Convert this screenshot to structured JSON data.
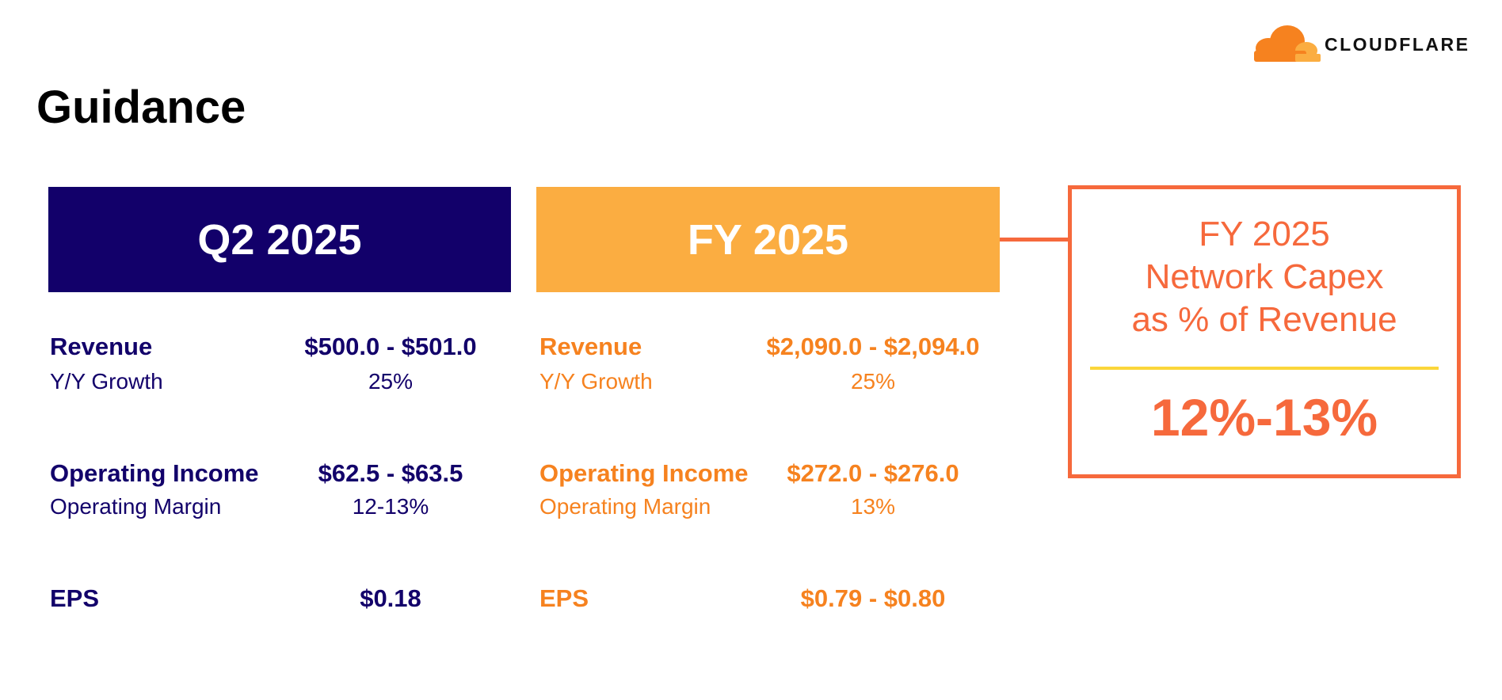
{
  "logo": {
    "text": "CLOUDFLARE"
  },
  "title": "Guidance",
  "q2": {
    "header": "Q2 2025",
    "revenue_label": "Revenue",
    "revenue_value": "$500.0 - $501.0",
    "growth_label": "Y/Y Growth",
    "growth_value": "25%",
    "opinc_label": "Operating Income",
    "opinc_value": "$62.5 - $63.5",
    "margin_label": "Operating Margin",
    "margin_value": "12-13%",
    "eps_label": "EPS",
    "eps_value": "$0.18"
  },
  "fy": {
    "header": "FY 2025",
    "revenue_label": "Revenue",
    "revenue_value": "$2,090.0 - $2,094.0",
    "growth_label": "Y/Y Growth",
    "growth_value": "25%",
    "opinc_label": "Operating Income",
    "opinc_value": "$272.0 - $276.0",
    "margin_label": "Operating Margin",
    "margin_value": "13%",
    "eps_label": "EPS",
    "eps_value": "$0.79 - $0.80"
  },
  "capex": {
    "line1": "FY 2025",
    "line2": "Network Capex",
    "line3": "as % of Revenue",
    "value": "12%-13%"
  },
  "colors": {
    "navy": "#12006a",
    "orange_header": "#fbad41",
    "orange_text": "#f6821f",
    "capex_accent": "#f6693c",
    "divider": "#fbd63a"
  }
}
